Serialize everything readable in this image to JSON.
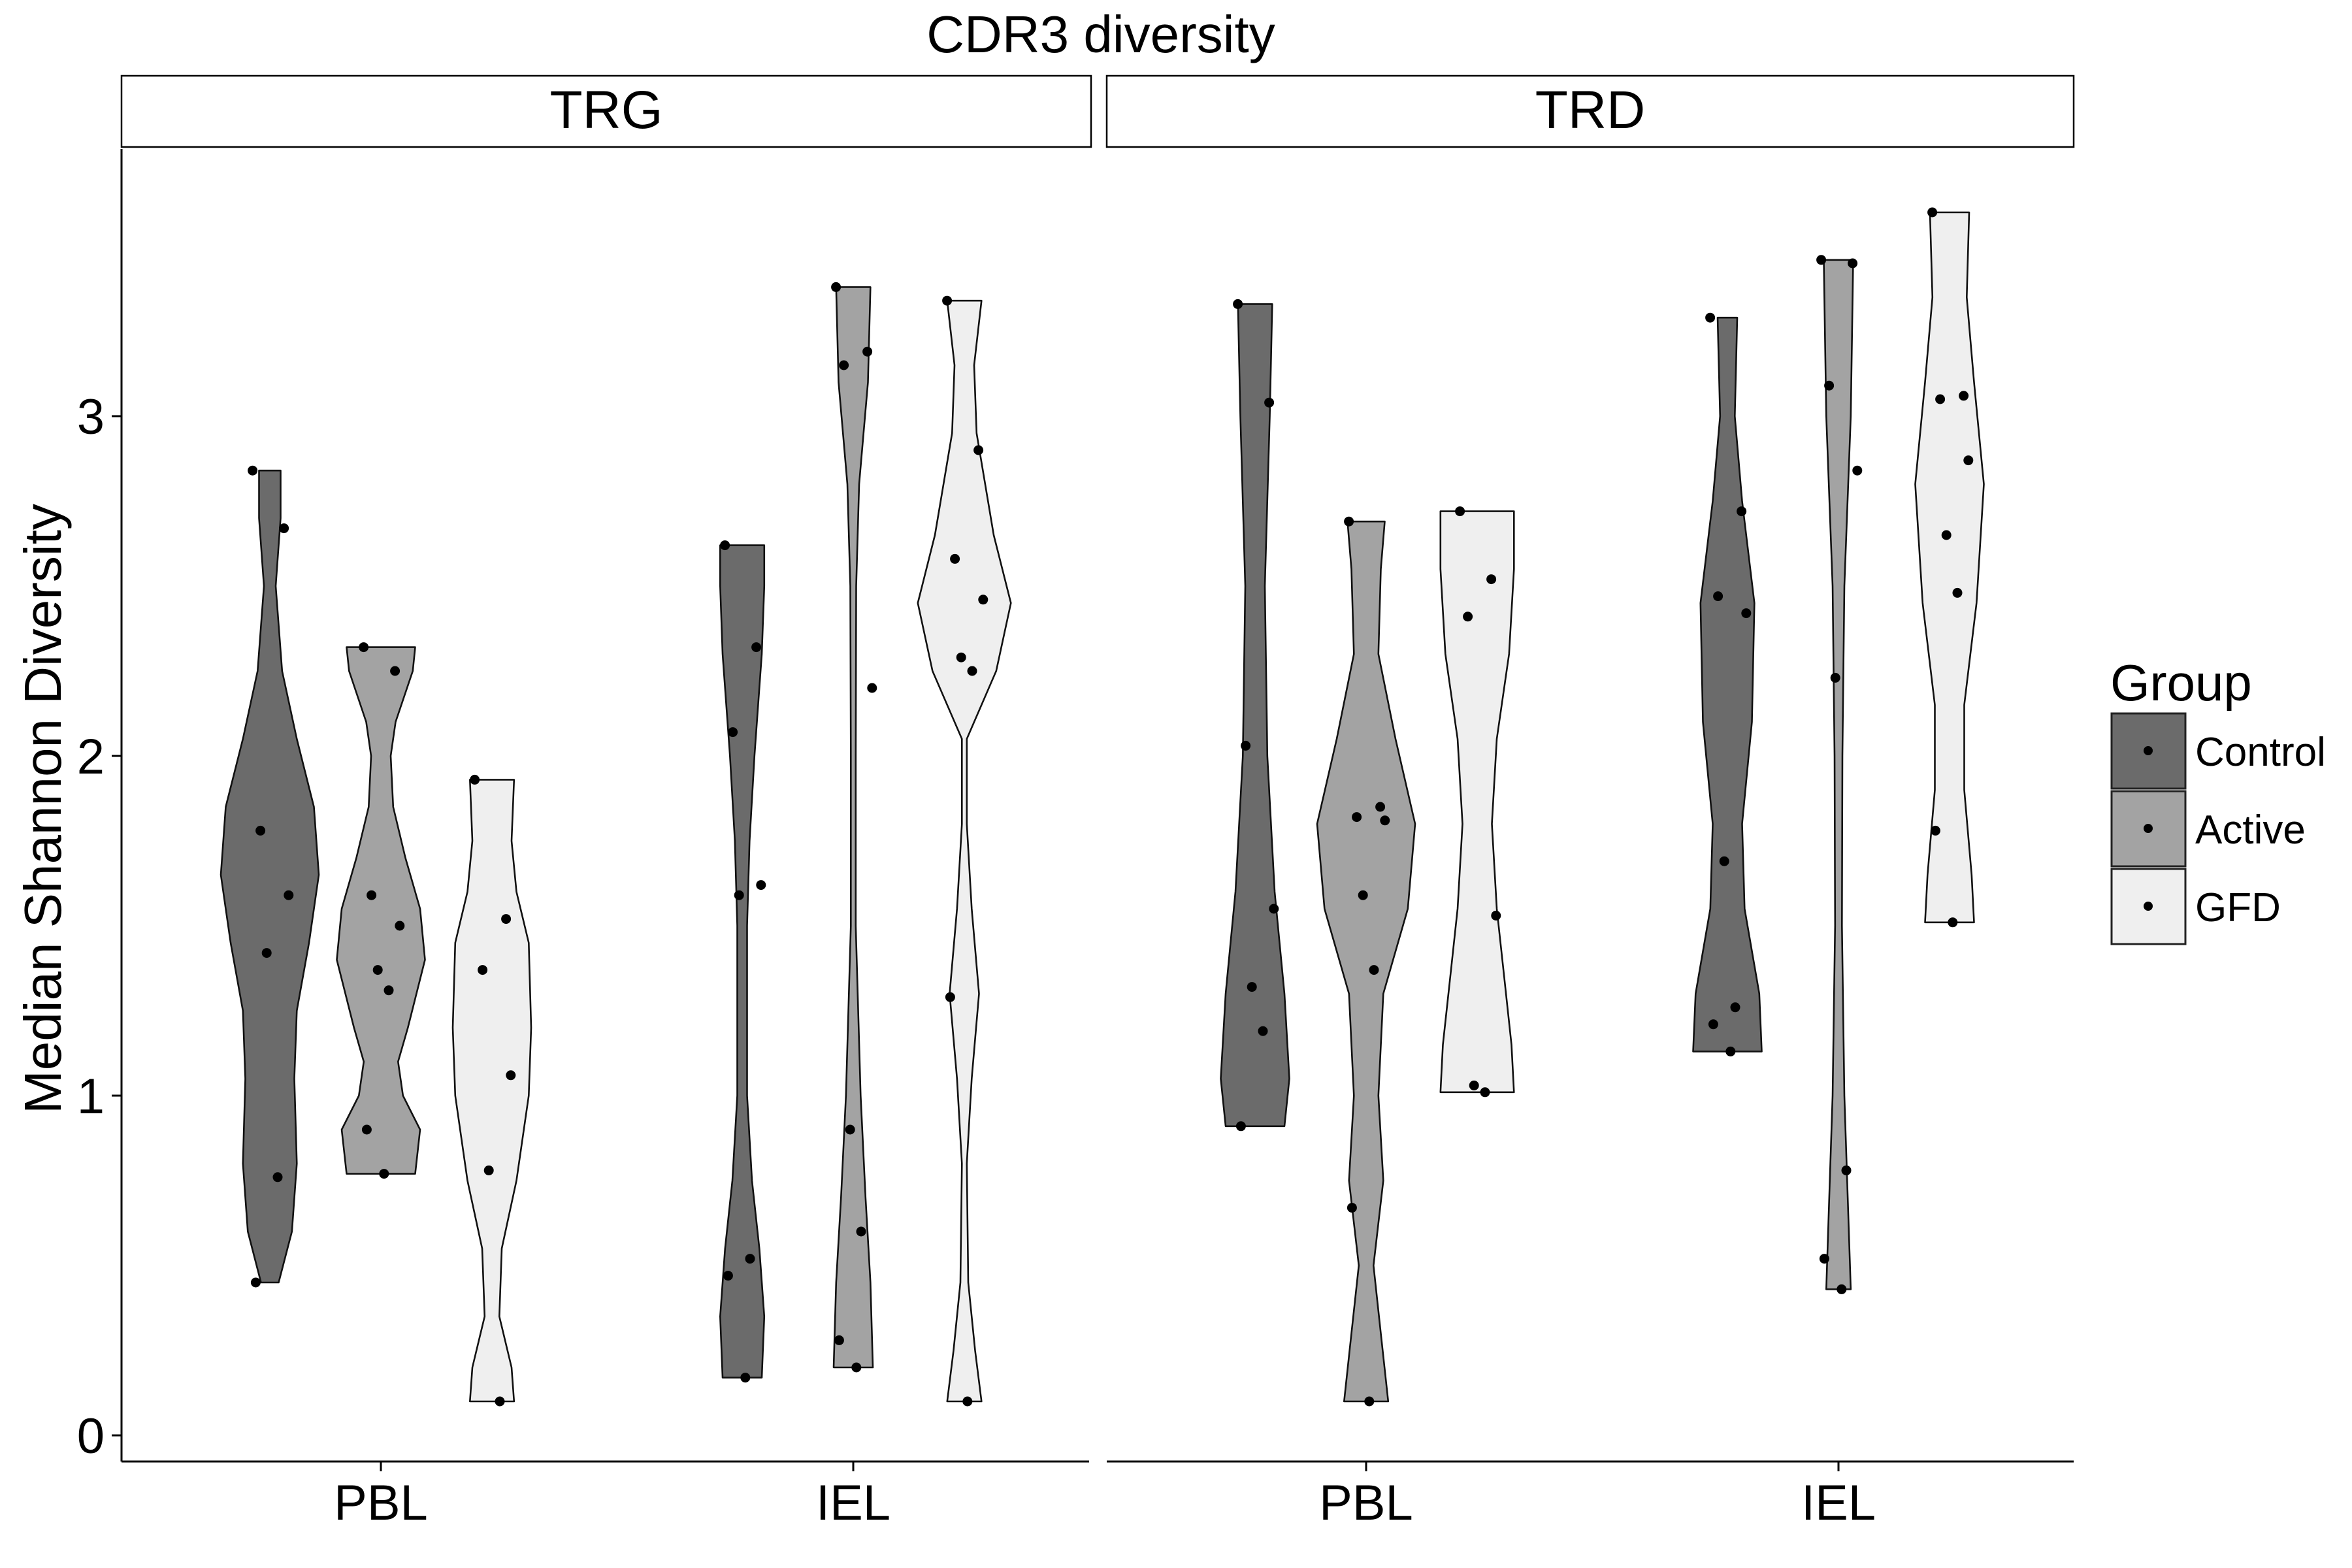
{
  "chart_data": {
    "type": "violin",
    "title": "CDR3 diversity",
    "xlabel": "",
    "ylabel": "Median Shannon Diversity",
    "ylim": [
      -0.08,
      3.8
    ],
    "yticks": [
      0,
      1,
      2,
      3
    ],
    "categories": [
      "PBL",
      "IEL"
    ],
    "grid": false,
    "legend": {
      "title": "Group",
      "placement": "right",
      "entries": [
        {
          "name": "Control",
          "color": "#6b6b6b"
        },
        {
          "name": "Active",
          "color": "#a3a3a3"
        },
        {
          "name": "GFD",
          "color": "#efefef"
        }
      ]
    },
    "panels": [
      {
        "label": "TRG",
        "groups": [
          {
            "category": "PBL",
            "group": "Control",
            "points": [
              2.84,
              2.67,
              1.78,
              1.59,
              1.42,
              0.76,
              0.45
            ],
            "density": [
              [
                0.45,
                0.18
              ],
              [
                0.6,
                0.45
              ],
              [
                0.8,
                0.55
              ],
              [
                1.05,
                0.5
              ],
              [
                1.25,
                0.55
              ],
              [
                1.45,
                0.8
              ],
              [
                1.65,
                1.0
              ],
              [
                1.85,
                0.9
              ],
              [
                2.05,
                0.55
              ],
              [
                2.25,
                0.25
              ],
              [
                2.5,
                0.12
              ],
              [
                2.7,
                0.22
              ],
              [
                2.84,
                0.22
              ]
            ]
          },
          {
            "category": "PBL",
            "group": "Active",
            "points": [
              2.32,
              2.25,
              1.59,
              1.5,
              1.37,
              1.31,
              0.9,
              0.77
            ],
            "density": [
              [
                0.77,
                0.7
              ],
              [
                0.9,
                0.8
              ],
              [
                1.0,
                0.45
              ],
              [
                1.1,
                0.35
              ],
              [
                1.2,
                0.55
              ],
              [
                1.4,
                0.9
              ],
              [
                1.55,
                0.8
              ],
              [
                1.7,
                0.5
              ],
              [
                1.85,
                0.25
              ],
              [
                2.0,
                0.2
              ],
              [
                2.1,
                0.3
              ],
              [
                2.25,
                0.65
              ],
              [
                2.32,
                0.7
              ]
            ]
          },
          {
            "category": "PBL",
            "group": "GFD",
            "points": [
              1.93,
              1.52,
              1.37,
              1.06,
              0.78,
              0.1
            ],
            "density": [
              [
                0.1,
                0.45
              ],
              [
                0.2,
                0.4
              ],
              [
                0.35,
                0.15
              ],
              [
                0.55,
                0.2
              ],
              [
                0.75,
                0.5
              ],
              [
                1.0,
                0.75
              ],
              [
                1.2,
                0.8
              ],
              [
                1.45,
                0.75
              ],
              [
                1.6,
                0.5
              ],
              [
                1.75,
                0.4
              ],
              [
                1.93,
                0.45
              ]
            ]
          },
          {
            "category": "IEL",
            "group": "Control",
            "points": [
              2.62,
              2.32,
              2.07,
              1.62,
              1.59,
              0.52,
              0.47,
              0.17
            ],
            "density": [
              [
                0.17,
                0.4
              ],
              [
                0.35,
                0.45
              ],
              [
                0.55,
                0.35
              ],
              [
                0.75,
                0.2
              ],
              [
                1.0,
                0.1
              ],
              [
                1.25,
                0.1
              ],
              [
                1.5,
                0.1
              ],
              [
                1.75,
                0.15
              ],
              [
                2.0,
                0.25
              ],
              [
                2.3,
                0.4
              ],
              [
                2.5,
                0.45
              ],
              [
                2.62,
                0.45
              ]
            ]
          },
          {
            "category": "IEL",
            "group": "Active",
            "points": [
              3.38,
              3.19,
              3.15,
              2.2,
              0.9,
              0.6,
              0.28,
              0.2
            ],
            "density": [
              [
                0.2,
                0.4
              ],
              [
                0.45,
                0.35
              ],
              [
                0.7,
                0.25
              ],
              [
                1.0,
                0.15
              ],
              [
                1.5,
                0.05
              ],
              [
                2.0,
                0.05
              ],
              [
                2.5,
                0.06
              ],
              [
                2.8,
                0.12
              ],
              [
                3.1,
                0.3
              ],
              [
                3.38,
                0.35
              ]
            ]
          },
          {
            "category": "IEL",
            "group": "GFD",
            "points": [
              3.34,
              2.9,
              2.58,
              2.46,
              2.29,
              2.25,
              1.29,
              0.1
            ],
            "density": [
              [
                0.1,
                0.35
              ],
              [
                0.25,
                0.22
              ],
              [
                0.45,
                0.08
              ],
              [
                0.8,
                0.05
              ],
              [
                1.05,
                0.15
              ],
              [
                1.3,
                0.3
              ],
              [
                1.55,
                0.15
              ],
              [
                1.8,
                0.05
              ],
              [
                2.05,
                0.05
              ],
              [
                2.25,
                0.65
              ],
              [
                2.45,
                0.95
              ],
              [
                2.65,
                0.6
              ],
              [
                2.95,
                0.25
              ],
              [
                3.15,
                0.2
              ],
              [
                3.34,
                0.35
              ]
            ]
          }
        ]
      },
      {
        "label": "TRD",
        "groups": [
          {
            "category": "PBL",
            "group": "Control",
            "points": [
              3.33,
              3.04,
              2.03,
              1.55,
              1.32,
              1.19,
              0.91
            ],
            "density": [
              [
                0.91,
                0.6
              ],
              [
                1.05,
                0.7
              ],
              [
                1.3,
                0.6
              ],
              [
                1.6,
                0.4
              ],
              [
                2.0,
                0.25
              ],
              [
                2.5,
                0.2
              ],
              [
                3.0,
                0.3
              ],
              [
                3.33,
                0.35
              ]
            ]
          },
          {
            "category": "PBL",
            "group": "Active",
            "points": [
              2.69,
              1.85,
              1.82,
              1.81,
              1.59,
              1.37,
              0.67,
              0.1
            ],
            "density": [
              [
                0.1,
                0.45
              ],
              [
                0.3,
                0.3
              ],
              [
                0.5,
                0.15
              ],
              [
                0.75,
                0.35
              ],
              [
                1.0,
                0.25
              ],
              [
                1.3,
                0.35
              ],
              [
                1.55,
                0.85
              ],
              [
                1.8,
                1.0
              ],
              [
                2.05,
                0.6
              ],
              [
                2.3,
                0.25
              ],
              [
                2.55,
                0.3
              ],
              [
                2.69,
                0.38
              ]
            ]
          },
          {
            "category": "PBL",
            "group": "GFD",
            "points": [
              2.72,
              2.52,
              2.41,
              1.53,
              1.03,
              1.01
            ],
            "density": [
              [
                1.01,
                0.75
              ],
              [
                1.15,
                0.7
              ],
              [
                1.35,
                0.55
              ],
              [
                1.55,
                0.4
              ],
              [
                1.8,
                0.3
              ],
              [
                2.05,
                0.4
              ],
              [
                2.3,
                0.65
              ],
              [
                2.55,
                0.75
              ],
              [
                2.72,
                0.75
              ]
            ]
          },
          {
            "category": "IEL",
            "group": "Control",
            "points": [
              3.29,
              2.72,
              2.47,
              2.42,
              1.69,
              1.26,
              1.21,
              1.13
            ],
            "density": [
              [
                1.13,
                0.7
              ],
              [
                1.3,
                0.65
              ],
              [
                1.55,
                0.35
              ],
              [
                1.8,
                0.3
              ],
              [
                2.1,
                0.5
              ],
              [
                2.45,
                0.55
              ],
              [
                2.75,
                0.3
              ],
              [
                3.0,
                0.15
              ],
              [
                3.29,
                0.2
              ]
            ]
          },
          {
            "category": "IEL",
            "group": "Active",
            "points": [
              3.46,
              3.45,
              3.09,
              2.84,
              2.23,
              0.78,
              0.52,
              0.43
            ],
            "density": [
              [
                0.43,
                0.25
              ],
              [
                0.65,
                0.2
              ],
              [
                1.0,
                0.12
              ],
              [
                1.5,
                0.07
              ],
              [
                2.0,
                0.08
              ],
              [
                2.5,
                0.12
              ],
              [
                3.0,
                0.25
              ],
              [
                3.46,
                0.3
              ]
            ]
          },
          {
            "category": "IEL",
            "group": "GFD",
            "points": [
              3.6,
              3.06,
              3.05,
              2.87,
              2.65,
              2.48,
              1.78,
              1.51
            ],
            "density": [
              [
                1.51,
                0.5
              ],
              [
                1.65,
                0.45
              ],
              [
                1.9,
                0.3
              ],
              [
                2.15,
                0.3
              ],
              [
                2.45,
                0.55
              ],
              [
                2.8,
                0.7
              ],
              [
                3.1,
                0.5
              ],
              [
                3.35,
                0.35
              ],
              [
                3.6,
                0.4
              ]
            ]
          }
        ]
      }
    ]
  }
}
